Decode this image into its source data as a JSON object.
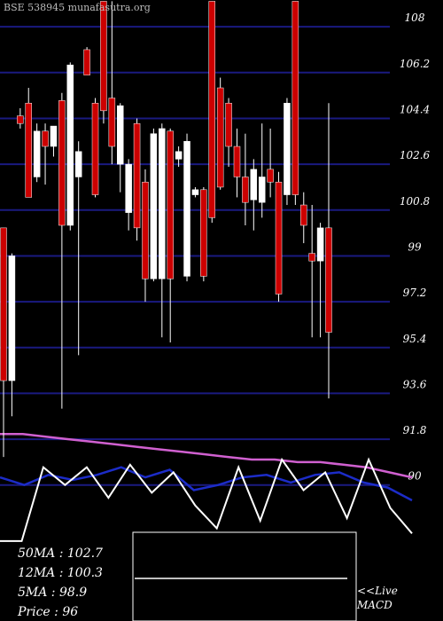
{
  "chart_data": {
    "type": "candlestick",
    "title": "BSE 538945 munafasutra.org",
    "ylim": [
      84.66,
      109.05
    ],
    "yticks": [
      108,
      106.2,
      104.4,
      102.6,
      100.8,
      99,
      97.2,
      95.4,
      93.6,
      91.8,
      90
    ],
    "grid": true,
    "up_color": "#ffffff",
    "down_color": "#cc0000",
    "open": [
      100.1,
      94.1,
      104.5,
      105.0,
      102.1,
      103.9,
      103.3,
      105.1,
      100.2,
      102.1,
      107.1,
      105.0,
      109.0,
      105.2,
      102.6,
      100.7,
      104.2,
      101.9,
      98.1,
      98.1,
      103.9,
      102.8,
      98.2,
      101.4,
      101.6,
      109.0,
      105.6,
      105.0,
      103.3,
      102.1,
      101.2,
      101.1,
      102.4,
      101.9,
      101.4,
      109.0,
      101.0,
      99.1,
      98.8,
      100.1
    ],
    "high": [
      100.1,
      99.1,
      104.8,
      105.6,
      104.2,
      104.2,
      104.1,
      105.4,
      106.6,
      103.5,
      107.2,
      105.2,
      109.0,
      109.0,
      105.0,
      102.8,
      104.4,
      102.4,
      104.0,
      104.2,
      104.0,
      103.3,
      103.8,
      101.7,
      101.7,
      109.0,
      106.0,
      105.2,
      104.0,
      103.8,
      102.8,
      104.2,
      104.0,
      102.3,
      105.2,
      109.0,
      101.5,
      101.0,
      100.3,
      105.0
    ],
    "low": [
      91.1,
      92.7,
      104.0,
      101.3,
      101.9,
      101.8,
      102.9,
      93.0,
      100.0,
      95.1,
      106.1,
      101.3,
      104.2,
      102.6,
      101.5,
      100.0,
      99.6,
      97.2,
      98.0,
      95.8,
      95.6,
      102.5,
      98.0,
      101.3,
      98.0,
      100.3,
      101.6,
      102.5,
      101.3,
      100.2,
      100.0,
      100.5,
      101.3,
      97.2,
      101.0,
      101.0,
      99.5,
      95.8,
      95.8,
      93.4
    ],
    "close": [
      94.1,
      99.0,
      104.2,
      101.3,
      103.9,
      103.3,
      104.1,
      100.2,
      106.5,
      103.1,
      106.1,
      101.4,
      104.7,
      103.3,
      104.9,
      102.6,
      100.1,
      98.1,
      103.8,
      104.0,
      98.1,
      103.1,
      103.5,
      101.6,
      98.2,
      100.5,
      101.7,
      103.3,
      102.1,
      101.1,
      102.4,
      102.1,
      101.9,
      97.5,
      105.0,
      101.4,
      100.2,
      98.8,
      100.1,
      96
    ],
    "overlays": [
      {
        "color": "#d060d0",
        "values": [
          92.0,
          92.0,
          91.9,
          91.8,
          91.7,
          91.6,
          91.5,
          91.4,
          91.3,
          91.2,
          91.1,
          91.0,
          91.0,
          90.9,
          90.9,
          90.8,
          90.7,
          90.5,
          90.3
        ]
      },
      {
        "color": "#1c2cc8",
        "values": [
          90.3,
          90.0,
          90.4,
          90.2,
          90.4,
          90.7,
          90.3,
          90.6,
          89.8,
          90.0,
          90.3,
          90.4,
          90.1,
          90.4,
          90.5,
          90.1,
          89.9,
          89.4
        ]
      },
      {
        "color": "#ffffff",
        "values": [
          87.8,
          87.8,
          90.7,
          90.0,
          90.7,
          89.5,
          90.8,
          89.7,
          90.5,
          89.2,
          88.3,
          90.7,
          88.6,
          91.0,
          89.8,
          90.5,
          88.7,
          91.0,
          89.1,
          88.1
        ]
      }
    ],
    "info": [
      "50MA : 102.7",
      "12MA : 100.3",
      "5MA : 98.9",
      "Price   : 96"
    ],
    "live": "<<Live",
    "macd_label": "MACD"
  }
}
